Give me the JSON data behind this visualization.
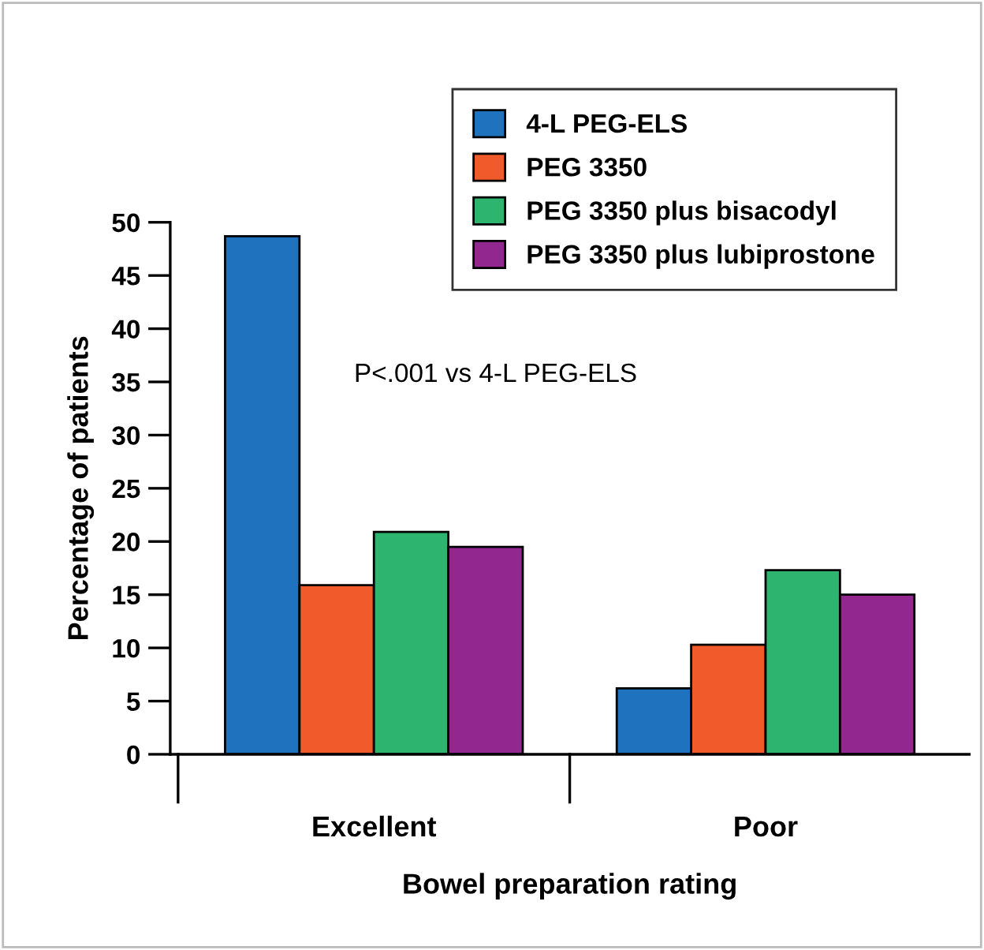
{
  "chart_data": {
    "type": "bar",
    "xlabel": "Bowel preparation rating",
    "ylabel": "Percentage of patients",
    "categories": [
      "Excellent",
      "Poor"
    ],
    "series": [
      {
        "name": "4-L PEG-ELS",
        "color": "#1f72bd",
        "values": [
          48.7,
          6.2
        ]
      },
      {
        "name": "PEG 3350",
        "color": "#f15a2b",
        "values": [
          15.9,
          10.3
        ]
      },
      {
        "name": "PEG 3350 plus bisacodyl",
        "color": "#2db570",
        "values": [
          20.9,
          17.3
        ]
      },
      {
        "name": "PEG 3350 plus lubiprostone",
        "color": "#92278f",
        "values": [
          19.5,
          15.0
        ]
      }
    ],
    "ylim": [
      0,
      50
    ],
    "yticks": [
      0,
      5,
      10,
      15,
      20,
      25,
      30,
      35,
      40,
      45,
      50
    ],
    "annotations": [
      "P<.001 vs 4-L PEG-ELS"
    ],
    "legend": "top right",
    "grid": false
  }
}
